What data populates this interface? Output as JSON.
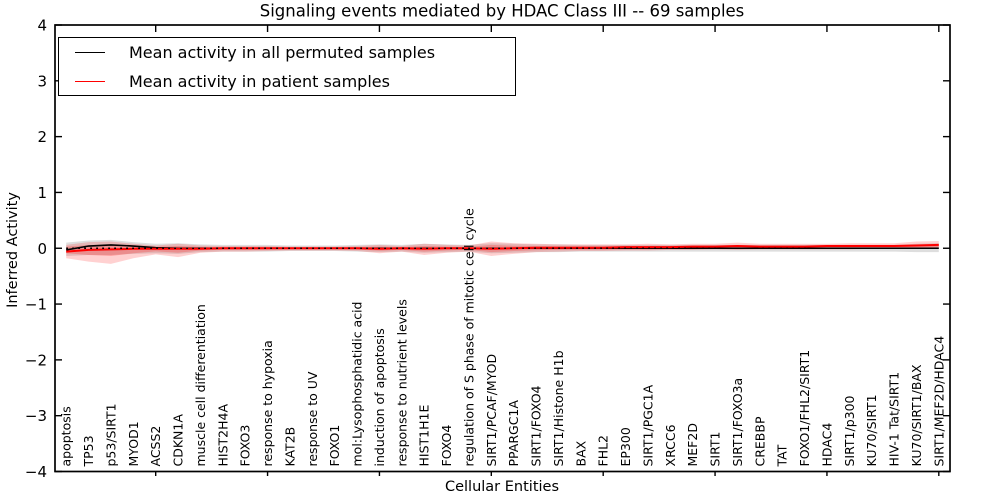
{
  "title": "Signaling events mediated by HDAC Class III -- 69 samples",
  "legend": {
    "items": [
      {
        "label": "Mean activity in all permuted samples",
        "color": "#000000"
      },
      {
        "label": "Mean activity in patient samples",
        "color": "#ff0000"
      }
    ]
  },
  "axes": {
    "ylabel": "Inferred Activity",
    "xlabel": "Cellular Entities",
    "ytick_labels": [
      "4",
      "3",
      "2",
      "1",
      "0",
      "−1",
      "−2",
      "−3",
      "−4"
    ],
    "ytick_values": [
      4,
      3,
      2,
      1,
      0,
      -1,
      -2,
      -3,
      -4
    ]
  },
  "colors": {
    "permuted_line": "#000000",
    "patient_line": "#ff0000",
    "patient_band": "rgba(255,0,0,0.18)",
    "patient_band_inner": "rgba(255,0,0,0.22)",
    "permuted_band": "rgba(0,0,0,0.13)",
    "zero_line": "#000000",
    "spine": "#000000"
  },
  "chart_data": {
    "type": "line",
    "title": "Signaling events mediated by HDAC Class III -- 69 samples",
    "xlabel": "Cellular Entities",
    "ylabel": "Inferred Activity",
    "ylim": [
      -4,
      4
    ],
    "grid": false,
    "legend_position": "upper left",
    "x_tick_indices": [
      4,
      9,
      14,
      19,
      24,
      29,
      34,
      39
    ],
    "categories": [
      "apoptosis",
      "TP53",
      "p53/SIRT1",
      "MYOD1",
      "ACSS2",
      "CDKN1A",
      "muscle cell differentiation",
      "HIST2H4A",
      "FOXO3",
      "response to hypoxia",
      "KAT2B",
      "response to UV",
      "FOXO1",
      "mol:Lysophosphatidic acid",
      "induction of apoptosis",
      "response to nutrient levels",
      "HIST1H1E",
      "FOXO4",
      "regulation of S phase of mitotic cell cycle",
      "SIRT1/PCAF/MYOD",
      "PPARGC1A",
      "SIRT1/FOXO4",
      "SIRT1/Histone H1b",
      "BAX",
      "FHL2",
      "EP300",
      "SIRT1/PGC1A",
      "XRCC6",
      "MEF2D",
      "SIRT1",
      "SIRT1/FOXO3a",
      "CREBBP",
      "TAT",
      "FOXO1/FHL2/SIRT1",
      "HDAC4",
      "SIRT1/p300",
      "KU70/SIRT1",
      "HIV-1 Tat/SIRT1",
      "KU70/SIRT1/BAX",
      "SIRT1/MEF2D/HDAC4"
    ],
    "series": [
      {
        "name": "Mean activity in all permuted samples",
        "color": "#000000",
        "values": [
          -0.03,
          0.04,
          0.06,
          0.04,
          0.01,
          0.0,
          0.0,
          0.0,
          0.0,
          0.0,
          0.0,
          0.0,
          0.0,
          0.0,
          0.0,
          0.0,
          0.0,
          0.0,
          0.0,
          0.0,
          0.0,
          0.0,
          0.0,
          0.0,
          0.0,
          0.0,
          0.0,
          0.0,
          0.0,
          0.0,
          0.0,
          0.0,
          0.0,
          0.0,
          0.0,
          0.0,
          0.0,
          0.0,
          0.0,
          0.0
        ]
      },
      {
        "name": "Mean activity in patient samples",
        "color": "#ff0000",
        "values": [
          -0.06,
          -0.03,
          -0.02,
          -0.01,
          -0.01,
          -0.01,
          -0.01,
          0.0,
          0.0,
          0.0,
          0.0,
          0.0,
          0.0,
          0.0,
          -0.01,
          0.0,
          -0.01,
          0.0,
          0.0,
          -0.01,
          0.0,
          0.01,
          0.01,
          0.01,
          0.01,
          0.02,
          0.02,
          0.02,
          0.03,
          0.03,
          0.04,
          0.03,
          0.03,
          0.03,
          0.04,
          0.04,
          0.04,
          0.04,
          0.05,
          0.06
        ]
      }
    ],
    "bands": [
      {
        "name": "patient samples std band",
        "color": "rgba(255,0,0,0.18)",
        "hi": [
          0.06,
          0.11,
          0.12,
          0.08,
          0.05,
          0.08,
          0.05,
          0.04,
          0.04,
          0.04,
          0.03,
          0.03,
          0.03,
          0.04,
          0.06,
          0.04,
          0.08,
          0.06,
          0.05,
          0.12,
          0.09,
          0.08,
          0.07,
          0.07,
          0.07,
          0.07,
          0.08,
          0.07,
          0.08,
          0.08,
          0.1,
          0.08,
          0.08,
          0.08,
          0.08,
          0.09,
          0.09,
          0.09,
          0.12,
          0.13
        ],
        "lo": [
          -0.18,
          -0.24,
          -0.28,
          -0.18,
          -0.11,
          -0.16,
          -0.08,
          -0.06,
          -0.06,
          -0.05,
          -0.04,
          -0.04,
          -0.04,
          -0.05,
          -0.09,
          -0.06,
          -0.12,
          -0.08,
          -0.06,
          -0.14,
          -0.1,
          -0.07,
          -0.06,
          -0.05,
          -0.05,
          -0.04,
          -0.04,
          -0.03,
          -0.03,
          -0.02,
          -0.03,
          -0.02,
          -0.02,
          -0.02,
          -0.02,
          -0.02,
          -0.01,
          -0.01,
          -0.01,
          -0.01
        ]
      },
      {
        "name": "permuted samples std band",
        "color": "rgba(0,0,0,0.13)",
        "hi": [
          0.1,
          0.14,
          0.15,
          0.11,
          0.08,
          0.09,
          0.07,
          0.06,
          0.06,
          0.06,
          0.05,
          0.05,
          0.05,
          0.06,
          0.07,
          0.06,
          0.08,
          0.07,
          0.06,
          0.09,
          0.08,
          0.07,
          0.07,
          0.06,
          0.06,
          0.06,
          0.06,
          0.06,
          0.06,
          0.06,
          0.06,
          0.06,
          0.06,
          0.06,
          0.06,
          0.06,
          0.06,
          0.06,
          0.08,
          0.09
        ],
        "lo": [
          -0.14,
          -0.12,
          -0.12,
          -0.1,
          -0.09,
          -0.1,
          -0.07,
          -0.06,
          -0.06,
          -0.06,
          -0.05,
          -0.05,
          -0.05,
          -0.06,
          -0.07,
          -0.06,
          -0.08,
          -0.07,
          -0.06,
          -0.09,
          -0.08,
          -0.07,
          -0.07,
          -0.06,
          -0.06,
          -0.06,
          -0.06,
          -0.06,
          -0.06,
          -0.06,
          -0.06,
          -0.06,
          -0.06,
          -0.06,
          -0.06,
          -0.06,
          -0.06,
          -0.06,
          -0.07,
          -0.07
        ]
      }
    ],
    "zero_line": {
      "value": 0,
      "style": "dotted",
      "color": "#000000"
    }
  }
}
